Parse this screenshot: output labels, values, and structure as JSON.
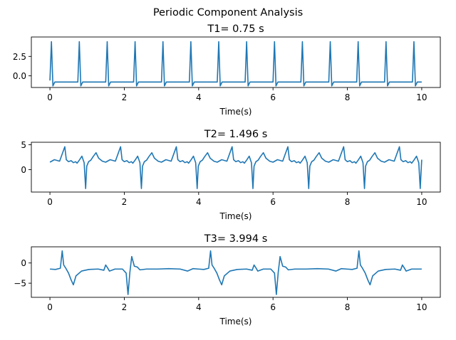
{
  "figure": {
    "suptitle": "Periodic Component Analysis"
  },
  "colors": {
    "line": "#1f77b4"
  },
  "chart_data": [
    {
      "type": "line",
      "title": "T1= 0.75 s",
      "xlabel": "Time(s)",
      "ylabel": "",
      "xlim": [
        -0.5,
        10.5
      ],
      "ylim": [
        -1.5,
        5.0
      ],
      "xticks": [
        0,
        2,
        4,
        6,
        8,
        10
      ],
      "yticks": [
        0.0,
        2.5
      ],
      "ytick_labels": [
        "0.0",
        "2.5"
      ],
      "series": [
        {
          "x": [
            0.0,
            0.04,
            0.08,
            0.13,
            0.75,
            0.79,
            0.83,
            0.88,
            1.5,
            1.54,
            1.58,
            1.63,
            2.25,
            2.29,
            2.33,
            2.38,
            3.0,
            3.04,
            3.08,
            3.13,
            3.75,
            3.79,
            3.83,
            3.88,
            4.5,
            4.54,
            4.58,
            4.63,
            5.25,
            5.29,
            5.33,
            5.38,
            6.0,
            6.04,
            6.08,
            6.13,
            6.75,
            6.79,
            6.83,
            6.88,
            7.5,
            7.54,
            7.58,
            7.63,
            8.25,
            8.29,
            8.33,
            8.38,
            9.0,
            9.04,
            9.08,
            9.13,
            9.75,
            9.79,
            9.83,
            9.88,
            10.0
          ],
          "y": [
            -0.6,
            4.4,
            -1.3,
            -0.8,
            -0.8,
            4.4,
            -1.3,
            -0.8,
            -0.8,
            4.4,
            -1.3,
            -0.8,
            -0.8,
            4.4,
            -1.3,
            -0.8,
            -0.8,
            4.4,
            -1.3,
            -0.8,
            -0.8,
            4.4,
            -1.3,
            -0.8,
            -0.8,
            4.4,
            -1.3,
            -0.8,
            -0.8,
            4.4,
            -1.3,
            -0.8,
            -0.8,
            4.4,
            -1.3,
            -0.8,
            -0.8,
            4.4,
            -1.3,
            -0.8,
            -0.8,
            4.4,
            -1.3,
            -0.8,
            -0.8,
            4.4,
            -1.3,
            -0.8,
            -0.8,
            4.4,
            -1.3,
            -0.8,
            -0.8,
            4.4,
            -1.3,
            -0.8,
            -0.8
          ]
        }
      ]
    },
    {
      "type": "line",
      "title": "T2= 1.496 s",
      "xlabel": "Time(s)",
      "ylabel": "",
      "xlim": [
        -0.5,
        10.5
      ],
      "ylim": [
        -4.5,
        5.5
      ],
      "xticks": [
        0,
        2,
        4,
        6,
        8,
        10
      ],
      "yticks": [
        0,
        5
      ],
      "ytick_labels": [
        "0",
        "5"
      ],
      "series": [
        {
          "x": [
            0.0,
            0.12,
            0.26,
            0.4,
            0.44,
            0.5,
            0.57,
            0.63,
            0.69,
            0.73,
            0.79,
            0.86,
            0.92,
            0.96,
            0.99,
            1.04,
            1.1,
            1.16,
            1.24,
            1.31,
            1.41,
            1.5,
            1.62,
            1.76,
            1.9,
            1.94,
            2.0,
            2.07,
            2.13,
            2.19,
            2.23,
            2.29,
            2.36,
            2.42,
            2.46,
            2.49,
            2.54,
            2.6,
            2.66,
            2.74,
            2.81,
            2.91,
            3.0,
            3.12,
            3.26,
            3.4,
            3.44,
            3.5,
            3.57,
            3.63,
            3.69,
            3.73,
            3.79,
            3.86,
            3.92,
            3.96,
            3.99,
            4.04,
            4.1,
            4.16,
            4.24,
            4.31,
            4.41,
            4.5,
            4.62,
            4.76,
            4.9,
            4.94,
            5.0,
            5.07,
            5.13,
            5.19,
            5.23,
            5.29,
            5.36,
            5.42,
            5.46,
            5.49,
            5.54,
            5.6,
            5.66,
            5.74,
            5.81,
            5.91,
            6.0,
            6.12,
            6.26,
            6.4,
            6.44,
            6.5,
            6.57,
            6.63,
            6.69,
            6.73,
            6.79,
            6.86,
            6.92,
            6.96,
            6.99,
            7.04,
            7.1,
            7.16,
            7.24,
            7.31,
            7.41,
            7.5,
            7.62,
            7.76,
            7.9,
            7.94,
            8.0,
            8.07,
            8.13,
            8.19,
            8.23,
            8.29,
            8.36,
            8.42,
            8.46,
            8.49,
            8.54,
            8.6,
            8.66,
            8.74,
            8.81,
            8.91,
            9.0,
            9.12,
            9.26,
            9.4,
            9.44,
            9.5,
            9.57,
            9.63,
            9.69,
            9.73,
            9.79,
            9.86,
            9.92,
            9.96,
            9.99,
            10.0
          ],
          "y": [
            1.5,
            2.0,
            1.7,
            4.6,
            2.0,
            1.6,
            1.8,
            1.4,
            1.6,
            1.3,
            1.9,
            2.7,
            1.4,
            -3.8,
            0.7,
            1.6,
            1.9,
            2.6,
            3.4,
            2.3,
            1.7,
            1.5,
            2.0,
            1.7,
            4.6,
            2.0,
            1.6,
            1.8,
            1.4,
            1.6,
            1.3,
            1.9,
            2.7,
            1.4,
            -3.8,
            0.7,
            1.6,
            1.9,
            2.6,
            3.4,
            2.3,
            1.7,
            1.5,
            2.0,
            1.7,
            4.6,
            2.0,
            1.6,
            1.8,
            1.4,
            1.6,
            1.3,
            1.9,
            2.7,
            1.4,
            -3.8,
            0.7,
            1.6,
            1.9,
            2.6,
            3.4,
            2.3,
            1.7,
            1.5,
            2.0,
            1.7,
            4.6,
            2.0,
            1.6,
            1.8,
            1.4,
            1.6,
            1.3,
            1.9,
            2.7,
            1.4,
            -3.8,
            0.7,
            1.6,
            1.9,
            2.6,
            3.4,
            2.3,
            1.7,
            1.5,
            2.0,
            1.7,
            4.6,
            2.0,
            1.6,
            1.8,
            1.4,
            1.6,
            1.3,
            1.9,
            2.7,
            1.4,
            -3.8,
            0.7,
            1.6,
            1.9,
            2.6,
            3.4,
            2.3,
            1.7,
            1.5,
            2.0,
            1.7,
            4.6,
            2.0,
            1.6,
            1.8,
            1.4,
            1.6,
            1.3,
            1.9,
            2.7,
            1.4,
            -3.8,
            0.7,
            1.6,
            1.9,
            2.6,
            3.4,
            2.3,
            1.7,
            1.5,
            2.0,
            1.7,
            4.6,
            2.0,
            1.6,
            1.8,
            1.4,
            1.6,
            1.3,
            1.9,
            2.7,
            1.4,
            -3.8,
            0.7,
            2.0
          ]
        }
      ]
    },
    {
      "type": "line",
      "title": "T3= 3.994 s",
      "xlabel": "Time(s)",
      "ylabel": "",
      "xlim": [
        -0.5,
        10.5
      ],
      "ylim": [
        -8.5,
        4.0
      ],
      "xticks": [
        0,
        2,
        4,
        6,
        8,
        10
      ],
      "yticks": [
        -5,
        0
      ],
      "ytick_labels": [
        "−5",
        "0"
      ],
      "series": [
        {
          "x": [
            0.0,
            0.15,
            0.28,
            0.33,
            0.37,
            0.42,
            0.5,
            0.57,
            0.63,
            0.7,
            0.85,
            1.05,
            1.3,
            1.45,
            1.5,
            1.55,
            1.6,
            1.75,
            1.95,
            2.05,
            2.1,
            2.15,
            2.2,
            2.27,
            2.35,
            2.42,
            2.6,
            2.9,
            3.2,
            3.5,
            3.7,
            3.85,
            3.99,
            4.14,
            4.27,
            4.32,
            4.36,
            4.41,
            4.49,
            4.56,
            4.62,
            4.69,
            4.84,
            5.04,
            5.29,
            5.44,
            5.49,
            5.54,
            5.59,
            5.74,
            5.94,
            6.04,
            6.09,
            6.14,
            6.19,
            6.26,
            6.34,
            6.41,
            6.59,
            6.89,
            7.19,
            7.49,
            7.69,
            7.84,
            7.98,
            8.13,
            8.26,
            8.31,
            8.35,
            8.4,
            8.48,
            8.55,
            8.61,
            8.68,
            8.83,
            9.03,
            9.28,
            9.43,
            9.48,
            9.53,
            9.58,
            9.73,
            9.93,
            10.0
          ],
          "y": [
            -1.5,
            -1.6,
            -1.3,
            3.0,
            -0.5,
            -1.2,
            -2.5,
            -4.2,
            -5.4,
            -3.2,
            -2.0,
            -1.6,
            -1.5,
            -1.8,
            -0.5,
            -1.2,
            -2.0,
            -1.5,
            -1.5,
            -2.5,
            -7.8,
            -2.3,
            1.6,
            -0.8,
            -1.0,
            -1.7,
            -1.5,
            -1.5,
            -1.4,
            -1.5,
            -2.0,
            -1.4,
            -1.5,
            -1.6,
            -1.3,
            3.0,
            -0.5,
            -1.2,
            -2.5,
            -4.2,
            -5.4,
            -3.2,
            -2.0,
            -1.6,
            -1.5,
            -1.8,
            -0.5,
            -1.2,
            -2.0,
            -1.5,
            -1.5,
            -2.5,
            -7.8,
            -2.3,
            1.6,
            -0.8,
            -1.0,
            -1.7,
            -1.5,
            -1.5,
            -1.4,
            -1.5,
            -2.0,
            -1.4,
            -1.5,
            -1.6,
            -1.3,
            3.0,
            -0.5,
            -1.2,
            -2.5,
            -4.2,
            -5.4,
            -3.2,
            -2.0,
            -1.6,
            -1.5,
            -1.8,
            -0.5,
            -1.2,
            -2.0,
            -1.5,
            -1.5,
            -1.5
          ]
        }
      ]
    }
  ]
}
